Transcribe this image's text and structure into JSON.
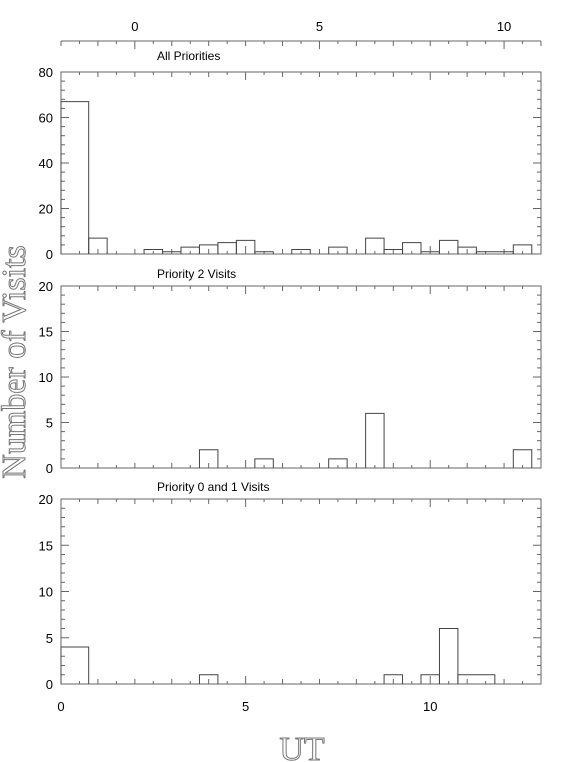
{
  "chart_data": {
    "type": "histogram",
    "ylabel": "Number of Visits",
    "xlabel": "UT",
    "bin_width": 0.5,
    "xlim_bottom": [
      0,
      13
    ],
    "bottom_ticks": [
      "0",
      "5",
      "10"
    ],
    "top_axis": {
      "xlim": [
        -2,
        11
      ],
      "ticks": [
        "0",
        "5",
        "10"
      ]
    },
    "panels": [
      {
        "title": "All Priorities",
        "ylim": [
          0,
          80
        ],
        "yticks": [
          "0",
          "20",
          "40",
          "60",
          "80"
        ],
        "bins": [
          {
            "x0": 0.0,
            "x1": 0.75,
            "v": 67
          },
          {
            "x0": 0.75,
            "x1": 1.25,
            "v": 7
          },
          {
            "x0": 1.25,
            "x1": 2.25,
            "v": 0
          },
          {
            "x0": 2.25,
            "x1": 2.75,
            "v": 2
          },
          {
            "x0": 2.75,
            "x1": 3.25,
            "v": 1
          },
          {
            "x0": 3.25,
            "x1": 3.75,
            "v": 3
          },
          {
            "x0": 3.75,
            "x1": 4.25,
            "v": 4
          },
          {
            "x0": 4.25,
            "x1": 4.75,
            "v": 5
          },
          {
            "x0": 4.75,
            "x1": 5.25,
            "v": 6
          },
          {
            "x0": 5.25,
            "x1": 5.75,
            "v": 1
          },
          {
            "x0": 5.75,
            "x1": 6.25,
            "v": 0
          },
          {
            "x0": 6.25,
            "x1": 6.75,
            "v": 2
          },
          {
            "x0": 6.75,
            "x1": 7.25,
            "v": 0
          },
          {
            "x0": 7.25,
            "x1": 7.75,
            "v": 3
          },
          {
            "x0": 7.75,
            "x1": 8.25,
            "v": 0
          },
          {
            "x0": 8.25,
            "x1": 8.75,
            "v": 7
          },
          {
            "x0": 8.75,
            "x1": 9.25,
            "v": 2
          },
          {
            "x0": 9.25,
            "x1": 9.75,
            "v": 5
          },
          {
            "x0": 9.75,
            "x1": 10.25,
            "v": 1
          },
          {
            "x0": 10.25,
            "x1": 10.75,
            "v": 6
          },
          {
            "x0": 10.75,
            "x1": 11.25,
            "v": 3
          },
          {
            "x0": 11.25,
            "x1": 12.25,
            "v": 1
          },
          {
            "x0": 12.25,
            "x1": 12.75,
            "v": 4
          },
          {
            "x0": 12.75,
            "x1": 13.0,
            "v": 0
          }
        ]
      },
      {
        "title": "Priority 2 Visits",
        "ylim": [
          0,
          20
        ],
        "yticks": [
          "0",
          "5",
          "10",
          "15",
          "20"
        ],
        "bins": [
          {
            "x0": 3.75,
            "x1": 4.25,
            "v": 2
          },
          {
            "x0": 5.25,
            "x1": 5.75,
            "v": 1
          },
          {
            "x0": 7.25,
            "x1": 7.75,
            "v": 1
          },
          {
            "x0": 8.25,
            "x1": 8.75,
            "v": 6
          },
          {
            "x0": 12.25,
            "x1": 12.75,
            "v": 2
          }
        ]
      },
      {
        "title": "Priority 0 and 1 Visits",
        "ylim": [
          0,
          20
        ],
        "yticks": [
          "0",
          "5",
          "10",
          "15",
          "20"
        ],
        "bins": [
          {
            "x0": 0.0,
            "x1": 0.75,
            "v": 4
          },
          {
            "x0": 3.75,
            "x1": 4.25,
            "v": 1
          },
          {
            "x0": 8.75,
            "x1": 9.25,
            "v": 1
          },
          {
            "x0": 9.75,
            "x1": 10.25,
            "v": 1
          },
          {
            "x0": 10.25,
            "x1": 10.75,
            "v": 6
          },
          {
            "x0": 10.75,
            "x1": 11.75,
            "v": 1
          }
        ]
      }
    ]
  }
}
